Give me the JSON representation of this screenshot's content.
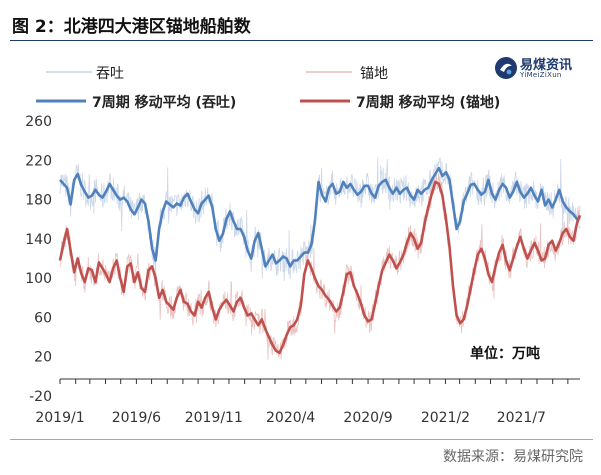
{
  "title": "图 2：北港四大港区锚地船舶数",
  "source": "数据来源：易煤研究院",
  "logo": {
    "name": "易煤资讯",
    "sub": "YiMeiZiXun",
    "icon": "logo-icon"
  },
  "unit_label": "单位：万吨",
  "legend": {
    "throughput_daily": "吞吐",
    "anchorage_daily": "锚地",
    "throughput_ma": "7周期 移动平均 (吞吐)",
    "anchorage_ma": "7周期 移动平均 (锚地)"
  },
  "colors": {
    "throughput_line": "#4f81bd",
    "throughput_daily": "#c7d3e6",
    "anchorage_line": "#c0504d",
    "anchorage_daily": "#e6bcbb"
  },
  "chart_data": {
    "type": "line",
    "title": "图 2：北港四大港区锚地船舶数",
    "ylabel": "单位：万吨",
    "ylim": [
      -20,
      260
    ],
    "yticks": [
      -20,
      20,
      60,
      100,
      140,
      180,
      220,
      260
    ],
    "xticks": [
      "2019/1",
      "2019/6",
      "2019/11",
      "2020/4",
      "2020/9",
      "2021/2",
      "2021/7"
    ],
    "x_range": [
      "2019-01-01",
      "2021-10-25"
    ],
    "legend_position": "top",
    "grid": false,
    "series": [
      {
        "name": "7周期 移动平均 (吞吐)",
        "key": "throughput_ma",
        "x": [
          "2019-01-01",
          "2019-01-08",
          "2019-01-15",
          "2019-01-22",
          "2019-01-29",
          "2019-02-05",
          "2019-02-12",
          "2019-02-19",
          "2019-02-26",
          "2019-03-05",
          "2019-03-12",
          "2019-03-19",
          "2019-03-26",
          "2019-04-02",
          "2019-04-09",
          "2019-04-16",
          "2019-04-23",
          "2019-04-30",
          "2019-05-07",
          "2019-05-14",
          "2019-05-21",
          "2019-05-28",
          "2019-06-04",
          "2019-06-11",
          "2019-06-18",
          "2019-06-25",
          "2019-07-02",
          "2019-07-09",
          "2019-07-16",
          "2019-07-23",
          "2019-07-30",
          "2019-08-06",
          "2019-08-13",
          "2019-08-20",
          "2019-08-27",
          "2019-09-03",
          "2019-09-10",
          "2019-09-17",
          "2019-09-24",
          "2019-10-01",
          "2019-10-08",
          "2019-10-15",
          "2019-10-22",
          "2019-10-29",
          "2019-11-05",
          "2019-11-12",
          "2019-11-19",
          "2019-11-26",
          "2019-12-03",
          "2019-12-10",
          "2019-12-17",
          "2019-12-24",
          "2019-12-31",
          "2020-01-07",
          "2020-01-14",
          "2020-01-21",
          "2020-01-28",
          "2020-02-04",
          "2020-02-11",
          "2020-02-18",
          "2020-02-25",
          "2020-03-03",
          "2020-03-10",
          "2020-03-17",
          "2020-03-24",
          "2020-03-31",
          "2020-04-07",
          "2020-04-14",
          "2020-04-21",
          "2020-04-28",
          "2020-05-05",
          "2020-05-12",
          "2020-05-19",
          "2020-05-26",
          "2020-06-02",
          "2020-06-09",
          "2020-06-16",
          "2020-06-23",
          "2020-06-30",
          "2020-07-07",
          "2020-07-14",
          "2020-07-21",
          "2020-07-28",
          "2020-08-04",
          "2020-08-11",
          "2020-08-18",
          "2020-08-25",
          "2020-09-01",
          "2020-09-08",
          "2020-09-15",
          "2020-09-22",
          "2020-09-29",
          "2020-10-06",
          "2020-10-13",
          "2020-10-20",
          "2020-10-27",
          "2020-11-03",
          "2020-11-10",
          "2020-11-17",
          "2020-11-24",
          "2020-12-01",
          "2020-12-08",
          "2020-12-15",
          "2020-12-22",
          "2020-12-29",
          "2021-01-05",
          "2021-01-12",
          "2021-01-19",
          "2021-01-26",
          "2021-02-02",
          "2021-02-09",
          "2021-02-16",
          "2021-02-23",
          "2021-03-02",
          "2021-03-09",
          "2021-03-16",
          "2021-03-23",
          "2021-03-30",
          "2021-04-06",
          "2021-04-13",
          "2021-04-20",
          "2021-04-27",
          "2021-05-04",
          "2021-05-11",
          "2021-05-18",
          "2021-05-25",
          "2021-06-01",
          "2021-06-08",
          "2021-06-15",
          "2021-06-22",
          "2021-06-29",
          "2021-07-06",
          "2021-07-13",
          "2021-07-20",
          "2021-07-27",
          "2021-08-03",
          "2021-08-10",
          "2021-08-17",
          "2021-08-24",
          "2021-08-31",
          "2021-09-07",
          "2021-09-14",
          "2021-09-21",
          "2021-09-28",
          "2021-10-05",
          "2021-10-12",
          "2021-10-19",
          "2021-10-25"
        ],
        "values": [
          200,
          196,
          192,
          175,
          200,
          206,
          195,
          188,
          182,
          184,
          190,
          185,
          182,
          188,
          196,
          190,
          184,
          180,
          182,
          178,
          170,
          165,
          172,
          180,
          176,
          158,
          130,
          118,
          150,
          168,
          178,
          175,
          172,
          176,
          174,
          182,
          186,
          178,
          170,
          166,
          176,
          180,
          184,
          172,
          150,
          138,
          145,
          160,
          168,
          158,
          150,
          150,
          142,
          128,
          120,
          138,
          146,
          130,
          112,
          118,
          124,
          115,
          118,
          122,
          120,
          112,
          118,
          118,
          122,
          126,
          126,
          134,
          158,
          198,
          185,
          178,
          192,
          196,
          186,
          188,
          198,
          192,
          196,
          190,
          185,
          188,
          194,
          194,
          186,
          182,
          194,
          198,
          200,
          192,
          186,
          192,
          186,
          190,
          192,
          184,
          180,
          190,
          186,
          190,
          192,
          200,
          206,
          212,
          204,
          208,
          200,
          175,
          150,
          158,
          178,
          186,
          195,
          196,
          190,
          185,
          188,
          200,
          186,
          180,
          190,
          196,
          192,
          182,
          188,
          198,
          188,
          182,
          186,
          192,
          184,
          178,
          190,
          174,
          180,
          172,
          180,
          190,
          178,
          172,
          168,
          165,
          160,
          162
        ]
      },
      {
        "name": "7周期 移动平均 (锚地)",
        "key": "anchorage_ma",
        "x": [
          "2019-01-01",
          "2019-01-08",
          "2019-01-15",
          "2019-01-22",
          "2019-01-29",
          "2019-02-05",
          "2019-02-12",
          "2019-02-19",
          "2019-02-26",
          "2019-03-05",
          "2019-03-12",
          "2019-03-19",
          "2019-03-26",
          "2019-04-02",
          "2019-04-09",
          "2019-04-16",
          "2019-04-23",
          "2019-04-30",
          "2019-05-07",
          "2019-05-14",
          "2019-05-21",
          "2019-05-28",
          "2019-06-04",
          "2019-06-11",
          "2019-06-18",
          "2019-06-25",
          "2019-07-02",
          "2019-07-09",
          "2019-07-16",
          "2019-07-23",
          "2019-07-30",
          "2019-08-06",
          "2019-08-13",
          "2019-08-20",
          "2019-08-27",
          "2019-09-03",
          "2019-09-10",
          "2019-09-17",
          "2019-09-24",
          "2019-10-01",
          "2019-10-08",
          "2019-10-15",
          "2019-10-22",
          "2019-10-29",
          "2019-11-05",
          "2019-11-12",
          "2019-11-19",
          "2019-11-26",
          "2019-12-03",
          "2019-12-10",
          "2019-12-17",
          "2019-12-24",
          "2019-12-31",
          "2020-01-07",
          "2020-01-14",
          "2020-01-21",
          "2020-01-28",
          "2020-02-04",
          "2020-02-11",
          "2020-02-18",
          "2020-02-25",
          "2020-03-03",
          "2020-03-10",
          "2020-03-17",
          "2020-03-24",
          "2020-03-31",
          "2020-04-07",
          "2020-04-14",
          "2020-04-21",
          "2020-04-28",
          "2020-05-05",
          "2020-05-12",
          "2020-05-19",
          "2020-05-26",
          "2020-06-02",
          "2020-06-09",
          "2020-06-16",
          "2020-06-23",
          "2020-06-30",
          "2020-07-07",
          "2020-07-14",
          "2020-07-21",
          "2020-07-28",
          "2020-08-04",
          "2020-08-11",
          "2020-08-18",
          "2020-08-25",
          "2020-09-01",
          "2020-09-08",
          "2020-09-15",
          "2020-09-22",
          "2020-09-29",
          "2020-10-06",
          "2020-10-13",
          "2020-10-20",
          "2020-10-27",
          "2020-11-03",
          "2020-11-10",
          "2020-11-17",
          "2020-11-24",
          "2020-12-01",
          "2020-12-08",
          "2020-12-15",
          "2020-12-22",
          "2020-12-29",
          "2021-01-05",
          "2021-01-12",
          "2021-01-19",
          "2021-01-26",
          "2021-02-02",
          "2021-02-09",
          "2021-02-16",
          "2021-02-23",
          "2021-03-02",
          "2021-03-09",
          "2021-03-16",
          "2021-03-23",
          "2021-03-30",
          "2021-04-06",
          "2021-04-13",
          "2021-04-20",
          "2021-04-27",
          "2021-05-04",
          "2021-05-11",
          "2021-05-18",
          "2021-05-25",
          "2021-06-01",
          "2021-06-08",
          "2021-06-15",
          "2021-06-22",
          "2021-06-29",
          "2021-07-06",
          "2021-07-13",
          "2021-07-20",
          "2021-07-27",
          "2021-08-03",
          "2021-08-10",
          "2021-08-17",
          "2021-08-24",
          "2021-08-31",
          "2021-09-07",
          "2021-09-14",
          "2021-09-21",
          "2021-09-28",
          "2021-10-05",
          "2021-10-12",
          "2021-10-19",
          "2021-10-25"
        ],
        "values": [
          118,
          135,
          150,
          128,
          106,
          120,
          105,
          96,
          110,
          108,
          96,
          116,
          110,
          104,
          96,
          110,
          118,
          100,
          86,
          112,
          115,
          96,
          106,
          90,
          86,
          108,
          112,
          100,
          80,
          88,
          76,
          72,
          68,
          80,
          88,
          76,
          74,
          66,
          62,
          76,
          70,
          80,
          86,
          70,
          58,
          68,
          74,
          78,
          72,
          66,
          76,
          80,
          70,
          62,
          64,
          58,
          52,
          58,
          48,
          40,
          32,
          26,
          24,
          32,
          42,
          50,
          52,
          58,
          72,
          104,
          118,
          110,
          100,
          92,
          88,
          82,
          78,
          72,
          66,
          70,
          86,
          104,
          106,
          92,
          84,
          74,
          62,
          56,
          58,
          74,
          92,
          108,
          116,
          124,
          118,
          110,
          116,
          124,
          136,
          146,
          140,
          130,
          136,
          156,
          172,
          186,
          198,
          196,
          184,
          160,
          132,
          92,
          62,
          54,
          58,
          72,
          90,
          108,
          124,
          130,
          120,
          104,
          96,
          112,
          126,
          134,
          118,
          108,
          120,
          132,
          142,
          130,
          120,
          128,
          136,
          128,
          118,
          120,
          134,
          138,
          128,
          136,
          146,
          150,
          142,
          138,
          156,
          164
        ]
      }
    ],
    "daily_series": [
      {
        "name": "吞吐",
        "key": "throughput_daily",
        "based_on": "throughput_ma",
        "amplitude": 14
      },
      {
        "name": "锚地",
        "key": "anchorage_daily",
        "based_on": "anchorage_ma",
        "amplitude": 12
      }
    ]
  }
}
